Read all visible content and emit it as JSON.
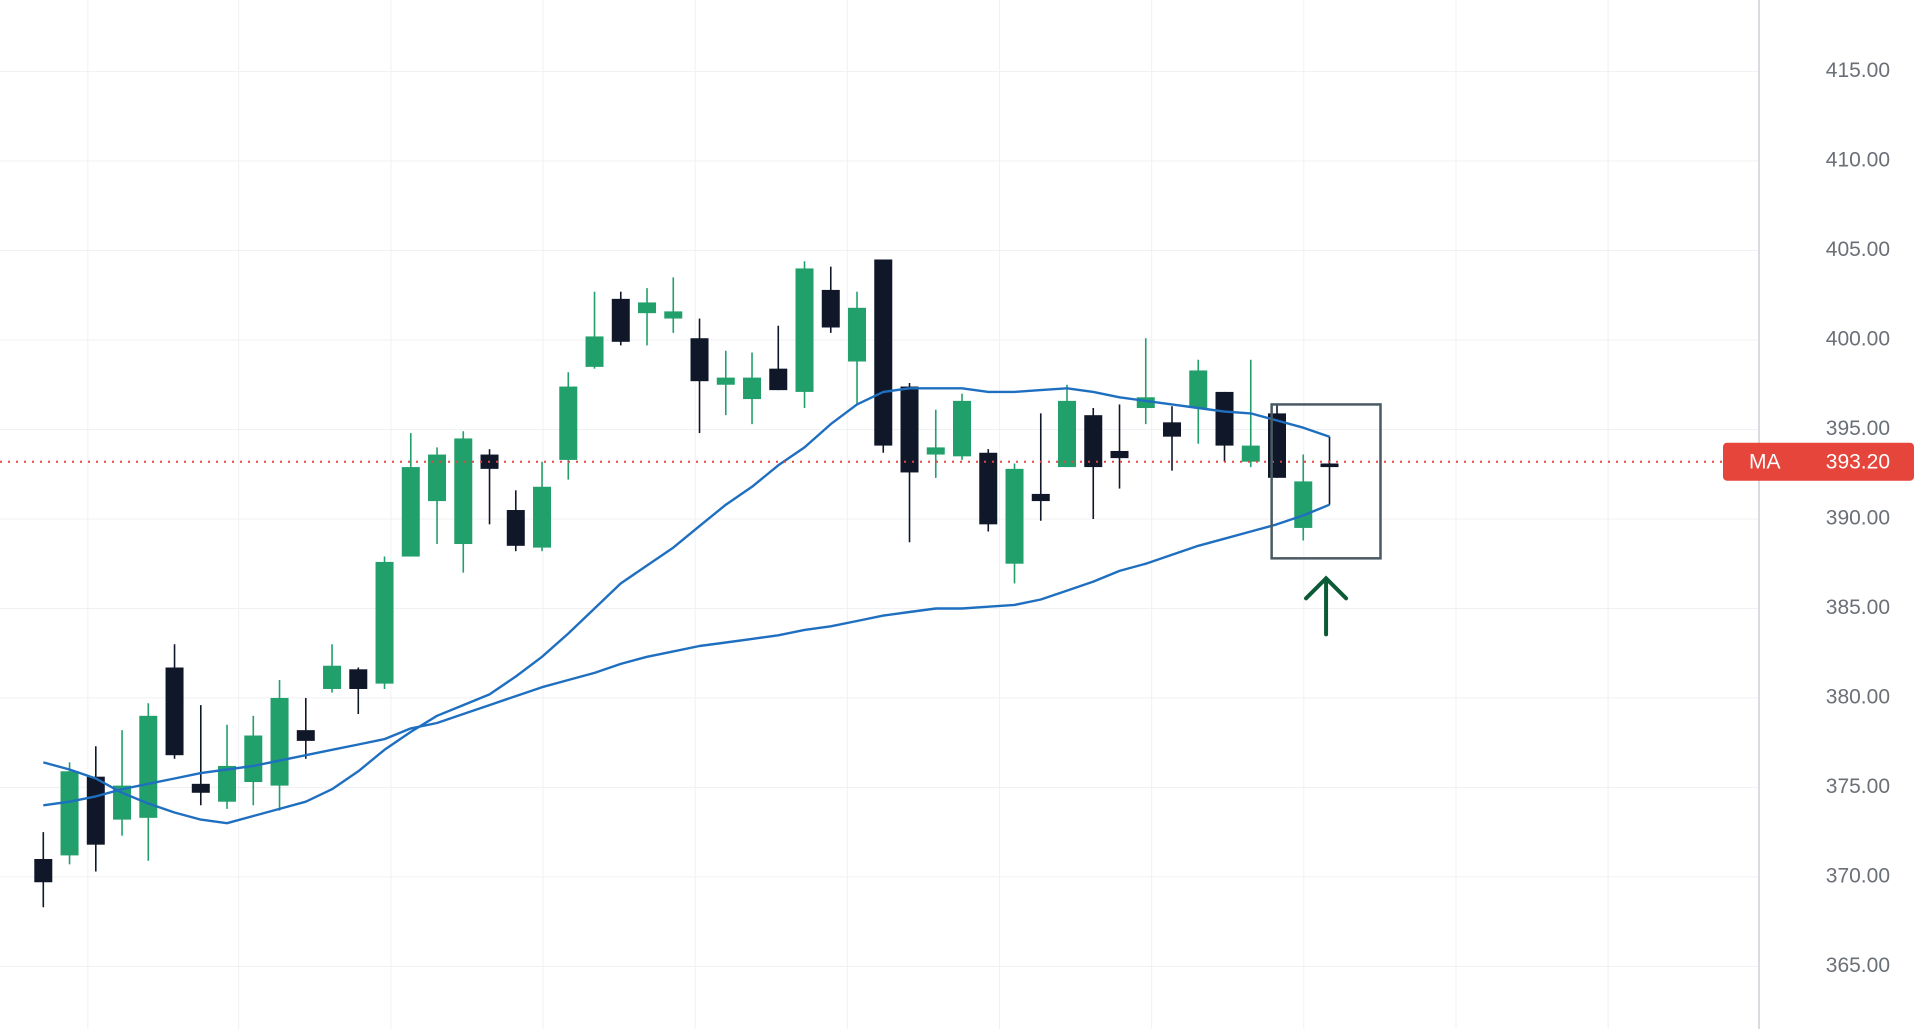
{
  "chart_data": {
    "type": "candlestick",
    "up_color": "#22a06b",
    "down_color": "#0f1729",
    "ohlc": {
      "open": [
        371.0,
        371.2,
        375.6,
        373.2,
        373.3,
        381.7,
        375.2,
        374.2,
        375.3,
        375.1,
        378.2,
        380.5,
        381.6,
        380.8,
        387.9,
        391.0,
        388.6,
        393.6,
        390.5,
        388.4,
        393.3,
        398.5,
        402.3,
        401.5,
        401.2,
        400.1,
        397.5,
        396.7,
        398.4,
        397.1,
        402.8,
        398.8,
        404.5,
        397.4,
        393.6,
        393.5,
        393.7,
        387.5,
        391.4,
        392.9,
        395.8,
        393.8,
        396.2,
        395.4,
        396.2,
        397.1,
        393.2,
        395.9,
        389.5,
        393.1
      ],
      "high": [
        372.5,
        376.4,
        377.3,
        378.2,
        379.7,
        383.0,
        379.6,
        378.5,
        379.0,
        381.0,
        380.0,
        383.0,
        381.7,
        387.9,
        394.8,
        394.0,
        394.9,
        393.9,
        391.6,
        393.2,
        398.2,
        402.7,
        402.7,
        402.9,
        403.5,
        401.2,
        399.4,
        399.3,
        400.8,
        404.4,
        404.1,
        402.7,
        404.5,
        397.6,
        396.1,
        397.0,
        393.9,
        393.1,
        395.9,
        397.5,
        396.2,
        396.4,
        400.1,
        396.3,
        398.9,
        397.1,
        398.9,
        396.4,
        393.6,
        394.6
      ],
      "low": [
        368.3,
        370.7,
        370.3,
        372.3,
        370.9,
        376.6,
        374.0,
        373.8,
        374.0,
        373.7,
        376.6,
        380.3,
        379.1,
        380.5,
        387.9,
        388.6,
        387.0,
        389.7,
        388.2,
        388.2,
        392.2,
        398.4,
        399.7,
        399.7,
        400.4,
        394.8,
        395.8,
        395.3,
        397.2,
        396.2,
        400.4,
        396.4,
        393.7,
        388.7,
        392.3,
        393.3,
        389.3,
        386.4,
        389.9,
        392.9,
        390.0,
        391.7,
        395.3,
        392.7,
        394.2,
        393.2,
        392.9,
        392.3,
        388.8,
        390.8
      ],
      "close": [
        369.7,
        375.9,
        371.8,
        375.1,
        379.0,
        376.8,
        374.7,
        376.2,
        377.9,
        380.0,
        377.6,
        381.8,
        380.5,
        387.6,
        392.9,
        393.6,
        394.5,
        392.8,
        388.5,
        391.8,
        397.4,
        400.2,
        399.9,
        402.1,
        401.6,
        397.7,
        397.9,
        397.9,
        397.2,
        404.0,
        400.7,
        401.8,
        394.1,
        392.6,
        394.0,
        396.6,
        389.7,
        392.8,
        391.0,
        396.6,
        392.9,
        393.4,
        396.8,
        394.6,
        398.3,
        394.1,
        394.1,
        392.3,
        392.1,
        392.9
      ]
    },
    "moving_averages": [
      {
        "color": "#1f6fc0",
        "values": [
          376.4,
          376.0,
          375.5,
          374.7,
          374.1,
          373.6,
          373.2,
          373.0,
          373.4,
          373.8,
          374.2,
          374.9,
          375.9,
          377.1,
          378.1,
          379.0,
          379.6,
          380.2,
          381.2,
          382.3,
          383.6,
          385.0,
          386.4,
          387.4,
          388.4,
          389.6,
          390.8,
          391.8,
          393.0,
          394.0,
          395.3,
          396.4,
          397.1,
          397.3,
          397.3,
          397.3,
          397.1,
          397.1,
          397.2,
          397.3,
          397.1,
          396.8,
          396.6,
          396.4,
          396.2,
          396.0,
          395.9,
          395.5,
          395.1,
          394.6
        ]
      },
      {
        "color": "#1f6fc0",
        "values": [
          374.0,
          374.2,
          374.5,
          374.9,
          375.2,
          375.5,
          375.8,
          376.0,
          376.2,
          376.5,
          376.8,
          377.1,
          377.4,
          377.7,
          378.3,
          378.6,
          379.1,
          379.6,
          380.1,
          380.6,
          381.0,
          381.4,
          381.9,
          382.3,
          382.6,
          382.9,
          383.1,
          383.3,
          383.5,
          383.8,
          384.0,
          384.3,
          384.6,
          384.8,
          385.0,
          385.0,
          385.1,
          385.2,
          385.5,
          386.0,
          386.5,
          387.1,
          387.5,
          388.0,
          388.5,
          388.9,
          389.3,
          389.7,
          390.2,
          390.8
        ]
      }
    ],
    "price_line": {
      "name": "MA",
      "value": 393.2,
      "value_label": "393.20",
      "color": "#e5453a"
    },
    "highlight": {
      "top": 396.4,
      "bottom": 387.8
    },
    "ylim": [
      361.5,
      419.0
    ],
    "yticks": [
      {
        "value": 365,
        "label": "365.00"
      },
      {
        "value": 370,
        "label": "370.00"
      },
      {
        "value": 375,
        "label": "375.00"
      },
      {
        "value": 380,
        "label": "380.00"
      },
      {
        "value": 385,
        "label": "385.00"
      },
      {
        "value": 390,
        "label": "390.00"
      },
      {
        "value": 395,
        "label": "395.00"
      },
      {
        "value": 400,
        "label": "400.00"
      },
      {
        "value": 405,
        "label": "405.00"
      },
      {
        "value": 410,
        "label": "410.00"
      },
      {
        "value": 415,
        "label": "415.00"
      }
    ],
    "grid": true
  }
}
